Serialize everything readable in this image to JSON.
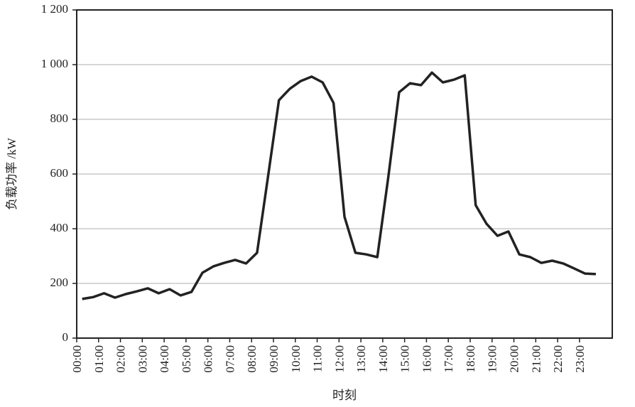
{
  "chart_data": {
    "type": "line",
    "x_label": "时刻",
    "y_label": "负载功率 /kW",
    "x": [
      0.25,
      0.75,
      1.25,
      1.75,
      2.25,
      2.75,
      3.25,
      3.75,
      4.25,
      4.75,
      5.25,
      5.75,
      6.25,
      6.75,
      7.25,
      7.75,
      8.25,
      8.75,
      9.25,
      9.75,
      10.25,
      10.75,
      11.25,
      11.75,
      12.25,
      12.75,
      13.25,
      13.75,
      14.25,
      14.75,
      15.25,
      15.75,
      16.25,
      16.75,
      17.25,
      17.75,
      18.25,
      18.75,
      19.25,
      19.75,
      20.25,
      20.75,
      21.25,
      21.75,
      22.25,
      22.75,
      23.25,
      23.75
    ],
    "series": [
      {
        "color": "#222222",
        "values": [
          143,
          150,
          164,
          148,
          161,
          171,
          182,
          164,
          179,
          156,
          169,
          239,
          262,
          275,
          286,
          273,
          312,
          590,
          870,
          912,
          940,
          956,
          935,
          860,
          444,
          312,
          306,
          296,
          587,
          899,
          932,
          925,
          971,
          935,
          945,
          961,
          486,
          418,
          374,
          390,
          306,
          296,
          275,
          283,
          273,
          255,
          236,
          234
        ]
      }
    ],
    "xlim": [
      0,
      24.5
    ],
    "xticks": [
      {
        "value": 0,
        "label": "00:00"
      },
      {
        "value": 1,
        "label": "01:00"
      },
      {
        "value": 2,
        "label": "02:00"
      },
      {
        "value": 3,
        "label": "03:00"
      },
      {
        "value": 4,
        "label": "04:00"
      },
      {
        "value": 5,
        "label": "05:00"
      },
      {
        "value": 6,
        "label": "06:00"
      },
      {
        "value": 7,
        "label": "07:00"
      },
      {
        "value": 8,
        "label": "08:00"
      },
      {
        "value": 9,
        "label": "09:00"
      },
      {
        "value": 10,
        "label": "10:00"
      },
      {
        "value": 11,
        "label": "11:00"
      },
      {
        "value": 12,
        "label": "12:00"
      },
      {
        "value": 13,
        "label": "13:00"
      },
      {
        "value": 14,
        "label": "14:00"
      },
      {
        "value": 15,
        "label": "15:00"
      },
      {
        "value": 16,
        "label": "16:00"
      },
      {
        "value": 17,
        "label": "17:00"
      },
      {
        "value": 18,
        "label": "18:00"
      },
      {
        "value": 19,
        "label": "19:00"
      },
      {
        "value": 20,
        "label": "20:00"
      },
      {
        "value": 21,
        "label": "21:00"
      },
      {
        "value": 22,
        "label": "22:00"
      },
      {
        "value": 23,
        "label": "23:00"
      }
    ],
    "ylim": [
      0,
      1200
    ],
    "yticks": [
      0,
      200,
      400,
      600,
      800,
      {
        "value": 1000,
        "label": "1 000"
      },
      {
        "value": 1200,
        "label": "1 200"
      }
    ],
    "grid": true
  }
}
